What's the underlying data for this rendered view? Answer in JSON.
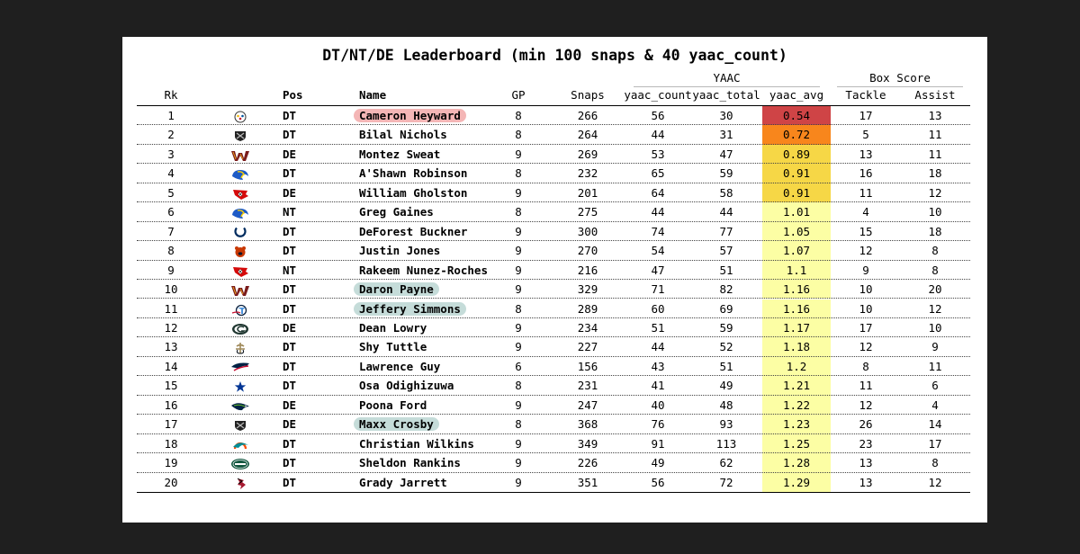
{
  "title": "DT/NT/DE Leaderboard (min 100 snaps & 40 yaac_count)",
  "groups": {
    "yaac": "YAAC",
    "box": "Box Score"
  },
  "headers": {
    "rk": "Rk",
    "pos": "Pos",
    "name": "Name",
    "gp": "GP",
    "snaps": "Snaps",
    "yaac_count": "yaac_count",
    "yaac_total": "yaac_total",
    "yaac_avg": "yaac_avg",
    "tackle": "Tackle",
    "assist": "Assist"
  },
  "colors": {
    "avg_red": "#cf4446",
    "avg_orange": "#f8861c",
    "avg_gold": "#f6d746",
    "avg_pale": "#fcfea4",
    "pill_red": "#f4b6b6",
    "pill_teal": "#c5dcd9"
  },
  "chart_data": {
    "type": "table",
    "columns": [
      "Rk",
      "Team",
      "Pos",
      "Name",
      "GP",
      "Snaps",
      "yaac_count",
      "yaac_total",
      "yaac_avg",
      "Tackle",
      "Assist"
    ],
    "rows": [
      {
        "rk": "1",
        "team": "steelers-logo",
        "pos": "DT",
        "name": "Cameron Heyward",
        "gp": "8",
        "snaps": "266",
        "yaac_count": "56",
        "yaac_total": "30",
        "yaac_avg": "0.54",
        "tackle": "17",
        "assist": "13",
        "avg_color": "#cf4446",
        "highlight": "#f4b6b6"
      },
      {
        "rk": "2",
        "team": "raiders-logo",
        "pos": "DT",
        "name": "Bilal Nichols",
        "gp": "8",
        "snaps": "264",
        "yaac_count": "44",
        "yaac_total": "31",
        "yaac_avg": "0.72",
        "tackle": "5",
        "assist": "11",
        "avg_color": "#f8861c",
        "highlight": ""
      },
      {
        "rk": "3",
        "team": "commanders-logo",
        "pos": "DE",
        "name": "Montez Sweat",
        "gp": "9",
        "snaps": "269",
        "yaac_count": "53",
        "yaac_total": "47",
        "yaac_avg": "0.89",
        "tackle": "13",
        "assist": "11",
        "avg_color": "#f6d746",
        "highlight": ""
      },
      {
        "rk": "4",
        "team": "rams-logo",
        "pos": "DT",
        "name": "A'Shawn Robinson",
        "gp": "8",
        "snaps": "232",
        "yaac_count": "65",
        "yaac_total": "59",
        "yaac_avg": "0.91",
        "tackle": "16",
        "assist": "18",
        "avg_color": "#f6d746",
        "highlight": ""
      },
      {
        "rk": "5",
        "team": "buccaneers-logo",
        "pos": "DE",
        "name": "William Gholston",
        "gp": "9",
        "snaps": "201",
        "yaac_count": "64",
        "yaac_total": "58",
        "yaac_avg": "0.91",
        "tackle": "11",
        "assist": "12",
        "avg_color": "#f6d746",
        "highlight": ""
      },
      {
        "rk": "6",
        "team": "rams-logo",
        "pos": "NT",
        "name": "Greg Gaines",
        "gp": "8",
        "snaps": "275",
        "yaac_count": "44",
        "yaac_total": "44",
        "yaac_avg": "1.01",
        "tackle": "4",
        "assist": "10",
        "avg_color": "#fcfea4",
        "highlight": ""
      },
      {
        "rk": "7",
        "team": "colts-logo",
        "pos": "DT",
        "name": "DeForest Buckner",
        "gp": "9",
        "snaps": "300",
        "yaac_count": "74",
        "yaac_total": "77",
        "yaac_avg": "1.05",
        "tackle": "15",
        "assist": "18",
        "avg_color": "#fcfea4",
        "highlight": ""
      },
      {
        "rk": "8",
        "team": "bears-logo",
        "pos": "DT",
        "name": "Justin Jones",
        "gp": "9",
        "snaps": "270",
        "yaac_count": "54",
        "yaac_total": "57",
        "yaac_avg": "1.07",
        "tackle": "12",
        "assist": "8",
        "avg_color": "#fcfea4",
        "highlight": ""
      },
      {
        "rk": "9",
        "team": "buccaneers-logo",
        "pos": "NT",
        "name": "Rakeem Nunez-Roches",
        "gp": "9",
        "snaps": "216",
        "yaac_count": "47",
        "yaac_total": "51",
        "yaac_avg": "1.1",
        "tackle": "9",
        "assist": "8",
        "avg_color": "#fcfea4",
        "highlight": ""
      },
      {
        "rk": "10",
        "team": "commanders-logo",
        "pos": "DT",
        "name": "Daron Payne",
        "gp": "9",
        "snaps": "329",
        "yaac_count": "71",
        "yaac_total": "82",
        "yaac_avg": "1.16",
        "tackle": "10",
        "assist": "20",
        "avg_color": "#fcfea4",
        "highlight": "#c5dcd9"
      },
      {
        "rk": "11",
        "team": "titans-logo",
        "pos": "DT",
        "name": "Jeffery Simmons",
        "gp": "8",
        "snaps": "289",
        "yaac_count": "60",
        "yaac_total": "69",
        "yaac_avg": "1.16",
        "tackle": "10",
        "assist": "12",
        "avg_color": "#fcfea4",
        "highlight": "#c5dcd9"
      },
      {
        "rk": "12",
        "team": "packers-logo",
        "pos": "DE",
        "name": "Dean Lowry",
        "gp": "9",
        "snaps": "234",
        "yaac_count": "51",
        "yaac_total": "59",
        "yaac_avg": "1.17",
        "tackle": "17",
        "assist": "10",
        "avg_color": "#fcfea4",
        "highlight": ""
      },
      {
        "rk": "13",
        "team": "saints-logo",
        "pos": "DT",
        "name": "Shy Tuttle",
        "gp": "9",
        "snaps": "227",
        "yaac_count": "44",
        "yaac_total": "52",
        "yaac_avg": "1.18",
        "tackle": "12",
        "assist": "9",
        "avg_color": "#fcfea4",
        "highlight": ""
      },
      {
        "rk": "14",
        "team": "patriots-logo",
        "pos": "DT",
        "name": "Lawrence Guy",
        "gp": "6",
        "snaps": "156",
        "yaac_count": "43",
        "yaac_total": "51",
        "yaac_avg": "1.2",
        "tackle": "8",
        "assist": "11",
        "avg_color": "#fcfea4",
        "highlight": ""
      },
      {
        "rk": "15",
        "team": "cowboys-logo",
        "pos": "DT",
        "name": "Osa Odighizuwa",
        "gp": "8",
        "snaps": "231",
        "yaac_count": "41",
        "yaac_total": "49",
        "yaac_avg": "1.21",
        "tackle": "11",
        "assist": "6",
        "avg_color": "#fcfea4",
        "highlight": ""
      },
      {
        "rk": "16",
        "team": "seahawks-logo",
        "pos": "DE",
        "name": "Poona Ford",
        "gp": "9",
        "snaps": "247",
        "yaac_count": "40",
        "yaac_total": "48",
        "yaac_avg": "1.22",
        "tackle": "12",
        "assist": "4",
        "avg_color": "#fcfea4",
        "highlight": ""
      },
      {
        "rk": "17",
        "team": "raiders-logo",
        "pos": "DE",
        "name": "Maxx Crosby",
        "gp": "8",
        "snaps": "368",
        "yaac_count": "76",
        "yaac_total": "93",
        "yaac_avg": "1.23",
        "tackle": "26",
        "assist": "14",
        "avg_color": "#fcfea4",
        "highlight": "#c5dcd9"
      },
      {
        "rk": "18",
        "team": "dolphins-logo",
        "pos": "DT",
        "name": "Christian Wilkins",
        "gp": "9",
        "snaps": "349",
        "yaac_count": "91",
        "yaac_total": "113",
        "yaac_avg": "1.25",
        "tackle": "23",
        "assist": "17",
        "avg_color": "#fcfea4",
        "highlight": ""
      },
      {
        "rk": "19",
        "team": "jets-logo",
        "pos": "DT",
        "name": "Sheldon Rankins",
        "gp": "9",
        "snaps": "226",
        "yaac_count": "49",
        "yaac_total": "62",
        "yaac_avg": "1.28",
        "tackle": "13",
        "assist": "8",
        "avg_color": "#fcfea4",
        "highlight": ""
      },
      {
        "rk": "20",
        "team": "falcons-logo",
        "pos": "DT",
        "name": "Grady Jarrett",
        "gp": "9",
        "snaps": "351",
        "yaac_count": "56",
        "yaac_total": "72",
        "yaac_avg": "1.29",
        "tackle": "13",
        "assist": "12",
        "avg_color": "#fcfea4",
        "highlight": ""
      }
    ]
  }
}
